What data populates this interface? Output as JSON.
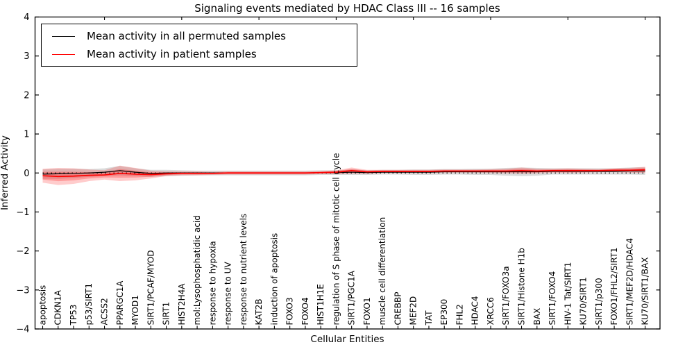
{
  "title": "Signaling events mediated by HDAC Class III -- 16 samples",
  "axes": {
    "xlabel": "Cellular Entities",
    "ylabel": "Inferred Activity"
  },
  "legend": {
    "position": "upper left",
    "entries": [
      {
        "label": "Mean activity in all permuted samples",
        "color": "#000000"
      },
      {
        "label": "Mean activity in patient samples",
        "color": "#ff0000"
      }
    ]
  },
  "chart_data": {
    "type": "line",
    "title": "Signaling events mediated by HDAC Class III -- 16 samples",
    "xlabel": "Cellular Entities",
    "ylabel": "Inferred Activity",
    "ylim": [
      -4,
      4
    ],
    "yticks": [
      -4,
      -3,
      -2,
      -1,
      0,
      1,
      2,
      3,
      4
    ],
    "grid": false,
    "background": "#ffffff",
    "zero_line": {
      "y": 0,
      "style": "dotted",
      "color": "#000000"
    },
    "categories": [
      "apoptosis",
      "CDKN1A",
      "TP53",
      "p53/SIRT1",
      "ACSS2",
      "PPARGC1A",
      "MYOD1",
      "SIRT1/PCAF/MYOD",
      "SIRT1",
      "HIST2H4A",
      "mol:Lysophosphatidic acid",
      "response to hypoxia",
      "response to UV",
      "response to nutrient levels",
      "KAT2B",
      "induction of apoptosis",
      "FOXO3",
      "FOXO4",
      "HIST1H1E",
      "regulation of S phase of mitotic cell cycle",
      "SIRT1/PGC1A",
      "FOXO1",
      "muscle cell differentiation",
      "CREBBP",
      "MEF2D",
      "TAT",
      "EP300",
      "FHL2",
      "HDAC4",
      "XRCC6",
      "SIRT1/FOXO3a",
      "SIRT1/Histone H1b",
      "BAX",
      "SIRT1/FOXO4",
      "HIV-1 Tat/SIRT1",
      "KU70/SIRT1",
      "SIRT1/p300",
      "FOXO1/FHL2/SIRT1",
      "SIRT1/MEF2D/HDAC4",
      "KU70/SIRT1/BAX"
    ],
    "series": [
      {
        "name": "Mean activity in all permuted samples",
        "color": "#000000",
        "band_fill": "rgba(90,90,90,0.22)",
        "values": [
          -0.03,
          -0.02,
          -0.01,
          0.0,
          0.02,
          0.06,
          0.02,
          -0.01,
          0.0,
          0.0,
          0.0,
          0.0,
          0.0,
          0.0,
          0.0,
          0.0,
          0.0,
          0.0,
          0.01,
          0.01,
          0.02,
          0.01,
          0.02,
          0.02,
          0.02,
          0.02,
          0.03,
          0.03,
          0.03,
          0.03,
          0.03,
          0.03,
          0.03,
          0.04,
          0.04,
          0.04,
          0.04,
          0.04,
          0.05,
          0.05
        ],
        "band_halfwidth": [
          0.12,
          0.13,
          0.12,
          0.1,
          0.1,
          0.12,
          0.1,
          0.09,
          0.08,
          0.07,
          0.06,
          0.06,
          0.06,
          0.06,
          0.06,
          0.06,
          0.06,
          0.06,
          0.06,
          0.06,
          0.07,
          0.06,
          0.06,
          0.06,
          0.07,
          0.07,
          0.07,
          0.07,
          0.08,
          0.08,
          0.1,
          0.11,
          0.1,
          0.08,
          0.08,
          0.08,
          0.08,
          0.08,
          0.09,
          0.1
        ]
      },
      {
        "name": "Mean activity in patient samples",
        "color": "#ff0000",
        "band_fill": "rgba(255,0,0,0.20)",
        "band_inner_fill": "rgba(255,0,0,0.24)",
        "values": [
          -0.07,
          -0.09,
          -0.08,
          -0.06,
          -0.05,
          -0.01,
          -0.03,
          -0.04,
          -0.02,
          -0.01,
          -0.01,
          -0.01,
          0.0,
          0.0,
          0.0,
          0.0,
          0.0,
          0.0,
          0.01,
          0.02,
          0.06,
          0.03,
          0.04,
          0.04,
          0.04,
          0.04,
          0.05,
          0.05,
          0.05,
          0.05,
          0.05,
          0.06,
          0.05,
          0.06,
          0.06,
          0.06,
          0.06,
          0.07,
          0.07,
          0.08
        ],
        "band_halfwidth": [
          0.18,
          0.22,
          0.2,
          0.15,
          0.12,
          0.2,
          0.16,
          0.1,
          0.06,
          0.05,
          0.05,
          0.04,
          0.04,
          0.04,
          0.04,
          0.04,
          0.04,
          0.04,
          0.04,
          0.05,
          0.08,
          0.05,
          0.04,
          0.04,
          0.04,
          0.04,
          0.04,
          0.04,
          0.04,
          0.05,
          0.06,
          0.08,
          0.06,
          0.05,
          0.06,
          0.05,
          0.04,
          0.05,
          0.06,
          0.08
        ]
      }
    ]
  }
}
